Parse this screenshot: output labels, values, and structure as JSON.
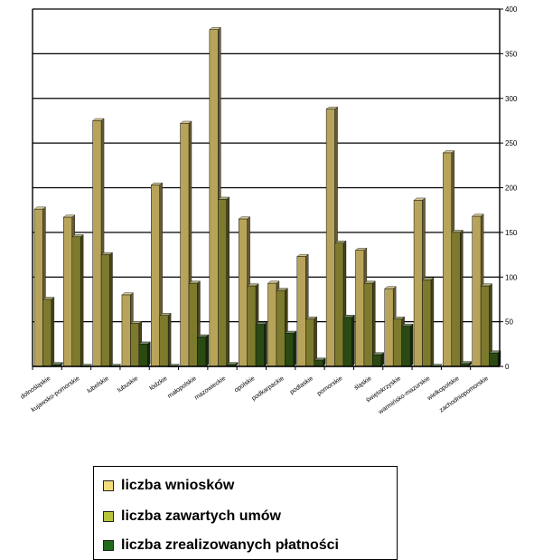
{
  "chart_data": {
    "type": "bar",
    "categories": [
      "dolnośląskie",
      "kujawsko-pomorskie",
      "lubelskie",
      "lubuskie",
      "łódzkie",
      "małopolskie",
      "mazowieckie",
      "opolskie",
      "podkarpackie",
      "podlaskie",
      "pomorskie",
      "śląskie",
      "świętokrzyskie",
      "warmińsko-mazurskie",
      "wielkopolskie",
      "zachodniopomorskie"
    ],
    "series": [
      {
        "name": "liczba wniosków",
        "color": "#b7a45a",
        "values": [
          176,
          167,
          275,
          80,
          203,
          272,
          377,
          165,
          93,
          123,
          288,
          130,
          87,
          186,
          239,
          168
        ]
      },
      {
        "name": "liczba zawartych umów",
        "color": "#7d7a2e",
        "values": [
          75,
          145,
          125,
          48,
          57,
          93,
          187,
          90,
          85,
          53,
          138,
          93,
          53,
          97,
          150,
          90
        ]
      },
      {
        "name": "liczba zrealizowanych płatności",
        "color": "#2a4a12",
        "values": [
          2,
          0,
          0,
          25,
          0,
          33,
          2,
          47,
          37,
          7,
          55,
          13,
          45,
          0,
          3,
          15
        ]
      }
    ],
    "ylim": [
      0,
      400
    ],
    "yticks": [
      "0",
      "50",
      "100",
      "150",
      "200",
      "250",
      "300",
      "350",
      "400"
    ],
    "grid": true,
    "legend_position": "bottom"
  }
}
